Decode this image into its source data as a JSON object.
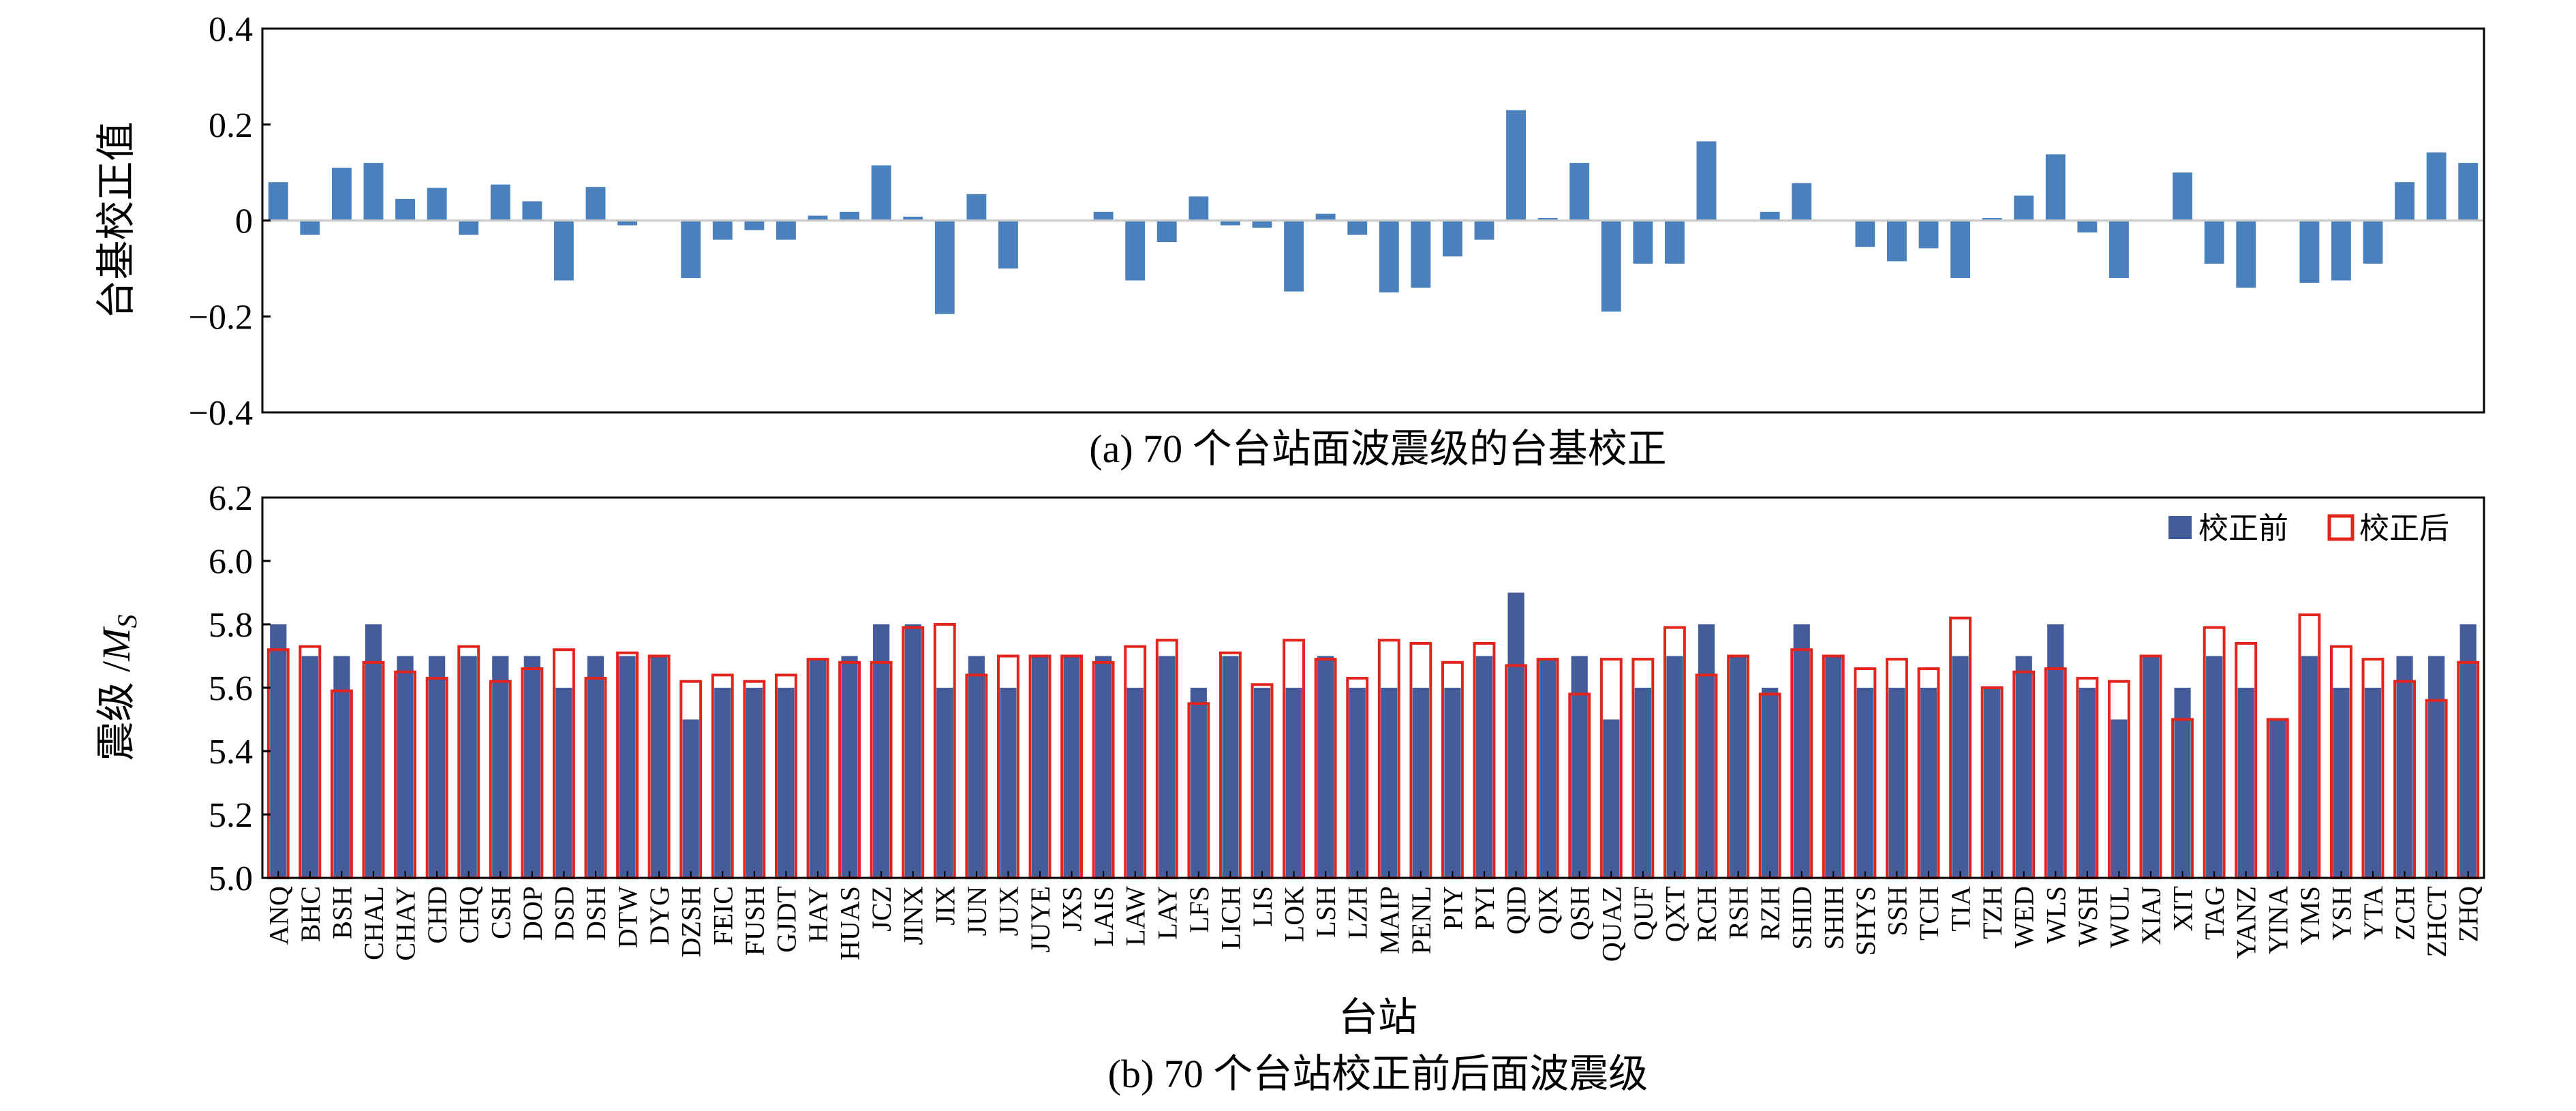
{
  "figure": {
    "caption_a": "(a) 70 个台站面波震级的台基校正",
    "caption_b": "(b) 70 个台站校正前后面波震级"
  },
  "colors": {
    "correction_bar": "#4a81bd",
    "before_bar": "#445c9a",
    "after_outline": "#e3241d",
    "zero_line": "#c8c8c8",
    "axis": "#000000"
  },
  "chart_data": [
    {
      "type": "bar",
      "ylabel": "台基校正值",
      "ylim": [
        -0.4,
        0.4
      ],
      "yticks": [
        -0.4,
        -0.2,
        0,
        0.2,
        0.4
      ],
      "ytick_labels": [
        "−0.4",
        "−0.2",
        "0",
        "0.2",
        "0.4"
      ],
      "grid": false,
      "categories": [
        "ANQ",
        "BHC",
        "BSH",
        "CHAL",
        "CHAY",
        "CHD",
        "CHQ",
        "CSH",
        "DOP",
        "DSD",
        "DSH",
        "DTW",
        "DYG",
        "DZSH",
        "FEIC",
        "FUSH",
        "GJDT",
        "HAY",
        "HUAS",
        "JCZ",
        "JINX",
        "JIX",
        "JUN",
        "JUX",
        "JUYE",
        "JXS",
        "LAIS",
        "LAW",
        "LAY",
        "LFS",
        "LICH",
        "LIS",
        "LOK",
        "LSH",
        "LZH",
        "MAIP",
        "PENL",
        "PIY",
        "PYI",
        "QID",
        "QIX",
        "QSH",
        "QUAZ",
        "QUF",
        "QXT",
        "RCH",
        "RSH",
        "RZH",
        "SHID",
        "SHIH",
        "SHYS",
        "SSH",
        "TCH",
        "TIA",
        "TZH",
        "WED",
        "WLS",
        "WSH",
        "WUL",
        "XIAJ",
        "XIT",
        "TAG",
        "YANZ",
        "YINA",
        "YMS",
        "YSH",
        "YTA",
        "ZCH",
        "ZHCT",
        "ZHQ"
      ],
      "values": [
        0.08,
        -0.03,
        0.11,
        0.12,
        0.045,
        0.068,
        -0.03,
        0.075,
        0.04,
        -0.125,
        0.07,
        -0.01,
        0.0,
        -0.12,
        -0.04,
        -0.02,
        -0.04,
        0.01,
        0.018,
        0.115,
        0.008,
        -0.195,
        0.055,
        -0.1,
        0.0,
        0.0,
        0.018,
        -0.125,
        -0.045,
        0.05,
        -0.01,
        -0.015,
        -0.148,
        0.014,
        -0.03,
        -0.15,
        -0.14,
        -0.075,
        -0.04,
        0.23,
        0.005,
        0.12,
        -0.19,
        -0.09,
        -0.09,
        0.165,
        0.0,
        0.018,
        0.078,
        0.0,
        -0.055,
        -0.085,
        -0.058,
        -0.12,
        0.005,
        0.052,
        0.138,
        -0.025,
        -0.12,
        0.0,
        0.1,
        -0.09,
        -0.14,
        0.0,
        -0.13,
        -0.125,
        -0.09,
        0.08,
        0.142,
        0.12
      ]
    },
    {
      "type": "bar",
      "xlabel": "台站",
      "ylabel": "震级 /",
      "ylabel_italic": "M",
      "ylabel_sub": "S",
      "ylim": [
        5.0,
        6.2
      ],
      "yticks": [
        5.0,
        5.2,
        5.4,
        5.6,
        5.8,
        6.0,
        6.2
      ],
      "ytick_labels": [
        "5.0",
        "5.2",
        "5.4",
        "5.6",
        "5.8",
        "6.0",
        "6.2"
      ],
      "grid": false,
      "legend_position": "top-right",
      "categories": [
        "ANQ",
        "BHC",
        "BSH",
        "CHAL",
        "CHAY",
        "CHD",
        "CHQ",
        "CSH",
        "DOP",
        "DSD",
        "DSH",
        "DTW",
        "DYG",
        "DZSH",
        "FEIC",
        "FUSH",
        "GJDT",
        "HAY",
        "HUAS",
        "JCZ",
        "JINX",
        "JIX",
        "JUN",
        "JUX",
        "JUYE",
        "JXS",
        "LAIS",
        "LAW",
        "LAY",
        "LFS",
        "LICH",
        "LIS",
        "LOK",
        "LSH",
        "LZH",
        "MAIP",
        "PENL",
        "PIY",
        "PYI",
        "QID",
        "QIX",
        "QSH",
        "QUAZ",
        "QUF",
        "QXT",
        "RCH",
        "RSH",
        "RZH",
        "SHID",
        "SHIH",
        "SHYS",
        "SSH",
        "TCH",
        "TIA",
        "TZH",
        "WED",
        "WLS",
        "WSH",
        "WUL",
        "XIAJ",
        "XIT",
        "TAG",
        "YANZ",
        "YINA",
        "YMS",
        "YSH",
        "YTA",
        "ZCH",
        "ZHCT",
        "ZHQ"
      ],
      "series": [
        {
          "name": "校正前",
          "values": [
            5.8,
            5.7,
            5.7,
            5.8,
            5.7,
            5.7,
            5.7,
            5.7,
            5.7,
            5.6,
            5.7,
            5.7,
            5.7,
            5.5,
            5.6,
            5.6,
            5.6,
            5.69,
            5.7,
            5.8,
            5.8,
            5.6,
            5.7,
            5.6,
            5.7,
            5.7,
            5.7,
            5.6,
            5.7,
            5.6,
            5.7,
            5.6,
            5.6,
            5.7,
            5.6,
            5.6,
            5.6,
            5.6,
            5.7,
            5.9,
            5.69,
            5.7,
            5.5,
            5.6,
            5.7,
            5.8,
            5.7,
            5.6,
            5.8,
            5.7,
            5.6,
            5.6,
            5.6,
            5.7,
            5.6,
            5.7,
            5.8,
            5.6,
            5.5,
            5.7,
            5.6,
            5.7,
            5.6,
            5.5,
            5.7,
            5.6,
            5.6,
            5.7,
            5.7,
            5.8
          ]
        },
        {
          "name": "校正后",
          "values": [
            5.72,
            5.73,
            5.59,
            5.68,
            5.65,
            5.63,
            5.73,
            5.62,
            5.66,
            5.72,
            5.63,
            5.71,
            5.7,
            5.62,
            5.64,
            5.62,
            5.64,
            5.69,
            5.68,
            5.68,
            5.79,
            5.8,
            5.64,
            5.7,
            5.7,
            5.7,
            5.68,
            5.73,
            5.75,
            5.55,
            5.71,
            5.61,
            5.75,
            5.69,
            5.63,
            5.75,
            5.74,
            5.68,
            5.74,
            5.67,
            5.69,
            5.58,
            5.69,
            5.69,
            5.79,
            5.64,
            5.7,
            5.58,
            5.72,
            5.7,
            5.66,
            5.69,
            5.66,
            5.82,
            5.6,
            5.65,
            5.66,
            5.63,
            5.62,
            5.7,
            5.5,
            5.79,
            5.74,
            5.5,
            5.83,
            5.73,
            5.69,
            5.62,
            5.56,
            5.68
          ]
        }
      ]
    }
  ]
}
